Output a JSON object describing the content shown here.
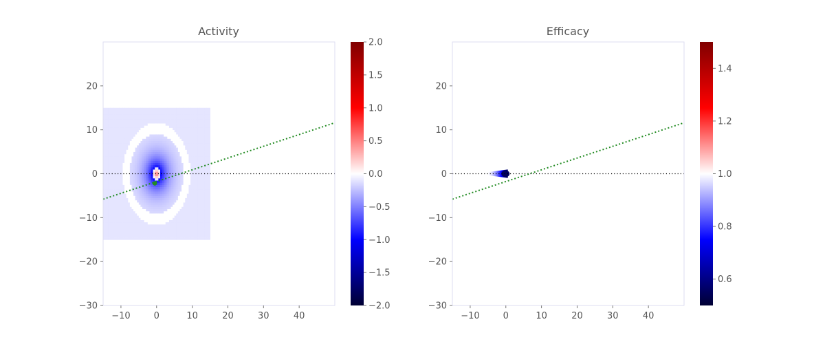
{
  "chart_data": [
    {
      "type": "heatmap",
      "title": "Activity",
      "xlabel": "",
      "ylabel": "",
      "xlim": [
        -15,
        50
      ],
      "ylim": [
        -30,
        30
      ],
      "xticks": [
        -10,
        0,
        10,
        20,
        30,
        40
      ],
      "yticks": [
        -30,
        -20,
        -10,
        0,
        10,
        20
      ],
      "xtick_labels": [
        "−10",
        "0",
        "10",
        "20",
        "30",
        "40"
      ],
      "ytick_labels": [
        "−30",
        "−20",
        "−10",
        "0",
        "10",
        "20"
      ],
      "colormap": "seismic",
      "colorbar": {
        "range": [
          -2.0,
          2.0
        ],
        "ticks": [
          -2.0,
          -1.5,
          -1.0,
          -0.5,
          0.0,
          0.5,
          1.0,
          1.5,
          2.0
        ],
        "tick_labels": [
          "−2.0",
          "−1.5",
          "−1.0",
          "−0.5",
          "0.0",
          "0.5",
          "1.0",
          "1.5",
          "2.0"
        ]
      },
      "field": {
        "x_range": [
          -15,
          15
        ],
        "y_range": [
          -15,
          15
        ],
        "base_value": -0.1,
        "center": [
          0,
          0
        ],
        "ring_radius": 8.5,
        "ring_value": 0.0,
        "inner_min": -0.9,
        "core_value": 0.6
      },
      "lines": [
        {
          "name": "",
          "style": "dotted",
          "color": "#000000",
          "x": [
            -15,
            50
          ],
          "y": [
            0,
            0
          ]
        },
        {
          "name": "",
          "style": "dotted",
          "color": "#228b22",
          "x": [
            -15,
            50
          ],
          "y": [
            -5.8,
            11.6
          ]
        }
      ],
      "markers": [
        {
          "name": "",
          "color": "#228b22",
          "x": -0.5,
          "y": -2.2
        }
      ]
    },
    {
      "type": "heatmap",
      "title": "Efficacy",
      "xlabel": "",
      "ylabel": "",
      "xlim": [
        -15,
        50
      ],
      "ylim": [
        -30,
        30
      ],
      "xticks": [
        -10,
        0,
        10,
        20,
        30,
        40
      ],
      "yticks": [
        -30,
        -20,
        -10,
        0,
        10,
        20
      ],
      "xtick_labels": [
        "−10",
        "0",
        "10",
        "20",
        "30",
        "40"
      ],
      "ytick_labels": [
        "−30",
        "−20",
        "−10",
        "0",
        "10",
        "20"
      ],
      "colormap": "seismic",
      "colorbar": {
        "range": [
          0.5,
          1.5
        ],
        "ticks": [
          0.6,
          0.8,
          1.0,
          1.2,
          1.4
        ],
        "tick_labels": [
          "0.6",
          "0.8",
          "1.0",
          "1.2",
          "1.4"
        ]
      },
      "field": {
        "base_value": 1.0,
        "streak": {
          "x_from": -5,
          "x_to": 0.5,
          "y": 0,
          "min_value": 0.55
        }
      },
      "lines": [
        {
          "name": "",
          "style": "dotted",
          "color": "#000000",
          "x": [
            -15,
            50
          ],
          "y": [
            0,
            0
          ]
        },
        {
          "name": "",
          "style": "dotted",
          "color": "#228b22",
          "x": [
            -15,
            50
          ],
          "y": [
            -5.8,
            11.6
          ]
        }
      ],
      "markers": []
    }
  ]
}
